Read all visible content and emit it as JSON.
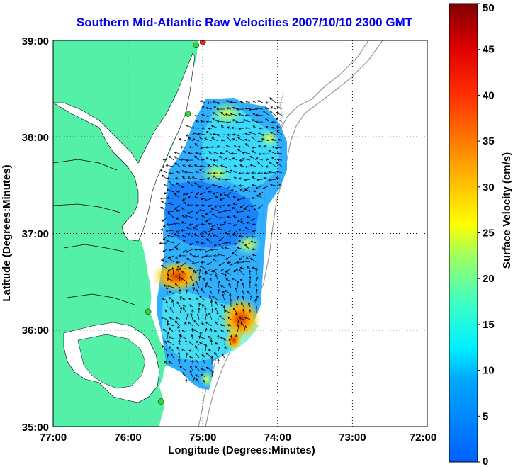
{
  "title": "Southern Mid-Atlantic Raw Velocities 2007/10/10 2300 GMT",
  "map": {
    "xlabel": "Longitude (Degrees:Minutes)",
    "ylabel": "Latitude (Degrees:Minutes)",
    "lon_ticks": [
      "77:00",
      "76:00",
      "75:00",
      "74:00",
      "73:00",
      "72:00"
    ],
    "lat_ticks": [
      "39:00",
      "38:00",
      "37:00",
      "36:00",
      "35:00"
    ],
    "lon_range_deg_west": [
      77,
      72
    ],
    "lat_range_deg_north": [
      35,
      39
    ],
    "grid": "dotted",
    "land_color": "#55f0a8",
    "stations": [
      {
        "lon": -75.0,
        "lat": 38.98,
        "color": "#e8231c"
      },
      {
        "lon": -75.09,
        "lat": 38.95,
        "color": "#3ad23a"
      },
      {
        "lon": -75.2,
        "lat": 38.24,
        "color": "#3ad23a"
      },
      {
        "lon": -75.73,
        "lat": 36.19,
        "color": "#3ad23a"
      },
      {
        "lon": -75.56,
        "lat": 35.26,
        "color": "#3ad23a"
      }
    ]
  },
  "colorbar": {
    "label": "Surface Velocity (cm/s)",
    "units": "cm/s",
    "min": 0,
    "max": 50,
    "ticks": [
      "0",
      "5",
      "10",
      "15",
      "20",
      "25",
      "30",
      "35",
      "40",
      "45",
      "50"
    ]
  }
}
